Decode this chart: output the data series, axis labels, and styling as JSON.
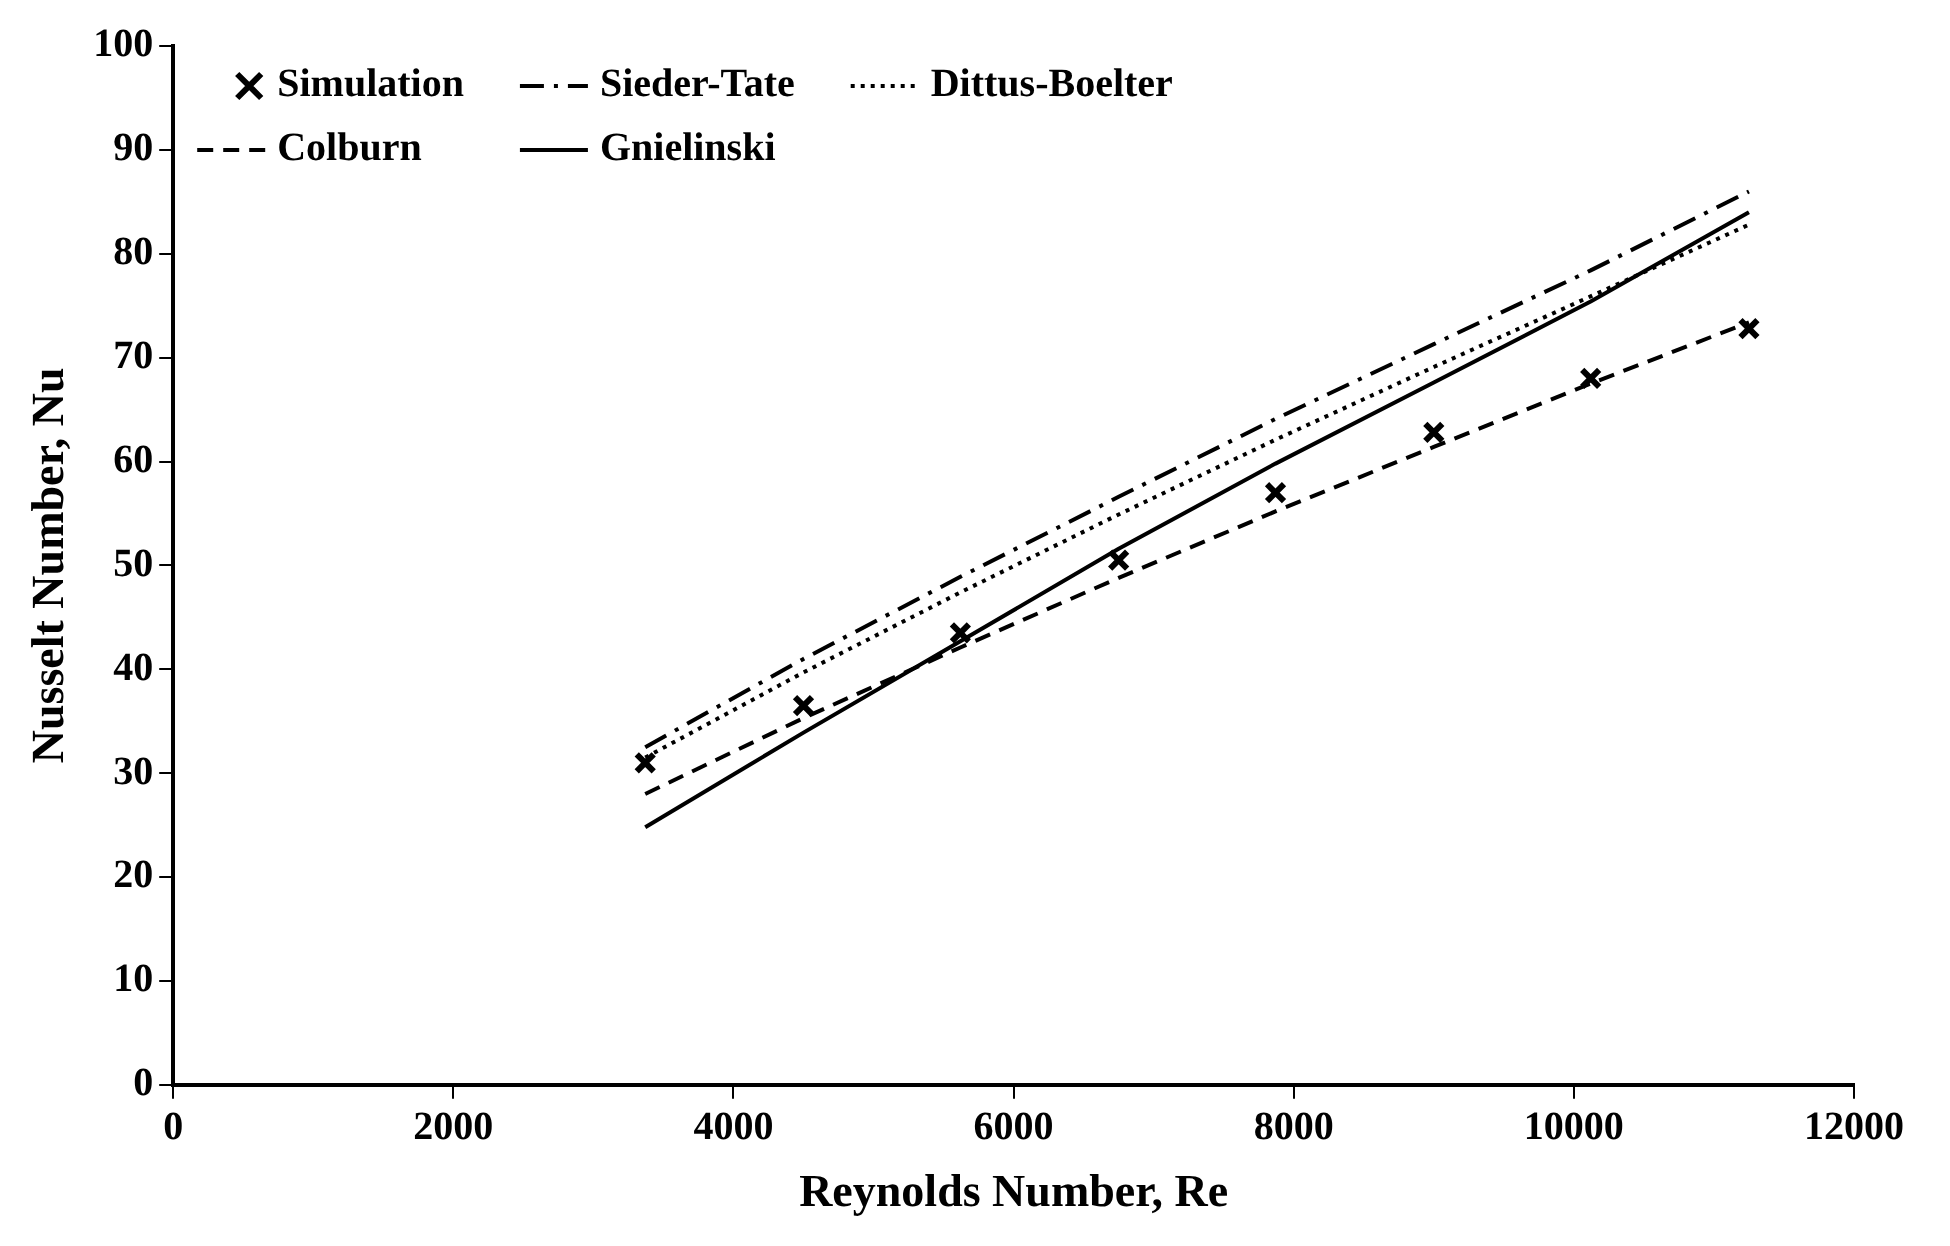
{
  "chart_data": {
    "type": "line",
    "xlabel": "Reynolds Number, Re",
    "ylabel": "Nusselt Number, Nu",
    "x": [
      3370,
      4500,
      5620,
      6750,
      7870,
      9000,
      10120,
      11250
    ],
    "xlim": [
      0,
      12000
    ],
    "xticks": [
      0,
      2000,
      4000,
      6000,
      8000,
      10000,
      12000
    ],
    "ylim": [
      0,
      100
    ],
    "yticks": [
      0,
      10,
      20,
      30,
      40,
      50,
      60,
      70,
      80,
      90,
      100
    ],
    "grid": false,
    "legend": "top left",
    "series": [
      {
        "name": "Simulation",
        "type": "scatter",
        "marker": "cross",
        "color": "#000000",
        "values": [
          31,
          36.5,
          43.5,
          50.5,
          57,
          62.8,
          68,
          72.8
        ]
      },
      {
        "name": "Sieder-Tate",
        "line_style": "dashdot",
        "marker": "none",
        "color": "#000000",
        "values": [
          32.5,
          41,
          48.9,
          56.6,
          64.1,
          71.3,
          78.4,
          86
        ]
      },
      {
        "name": "Dittus-Boelter",
        "line_style": "dotted",
        "marker": "none",
        "color": "#000000",
        "values": [
          31.5,
          39.7,
          47.4,
          54.9,
          62.1,
          69.1,
          75.9,
          82.8
        ]
      },
      {
        "name": "Colburn",
        "line_style": "dashed",
        "marker": "none",
        "color": "#000000",
        "values": [
          28,
          35.3,
          42.1,
          48.8,
          55.2,
          61.4,
          67.5,
          73.4
        ]
      },
      {
        "name": "Gnielinski",
        "line_style": "solid",
        "marker": "none",
        "color": "#000000",
        "values": [
          24.8,
          33.9,
          42.7,
          51.6,
          59.8,
          67.6,
          75.4,
          84
        ]
      }
    ]
  }
}
